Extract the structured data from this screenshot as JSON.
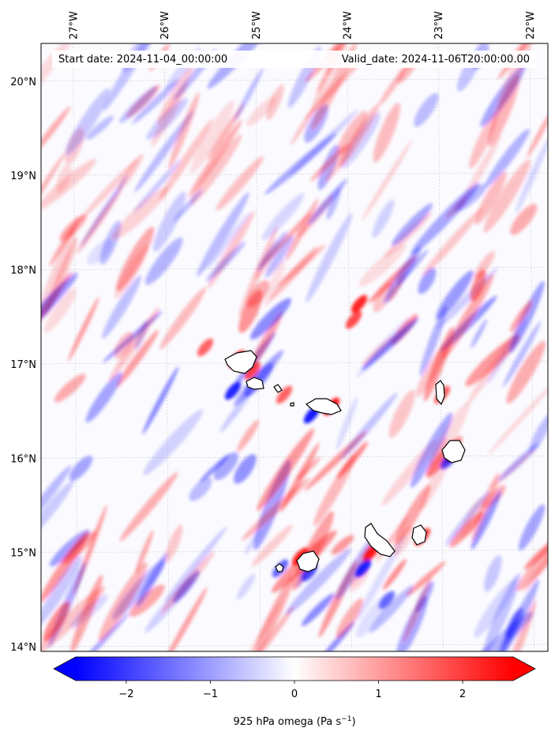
{
  "header": {
    "start_date": "Start date: 2024-11-04_00:00:00",
    "valid_date": "Valid_date: 2024-11-06T20:00:00.00"
  },
  "map": {
    "lon_min": -27.35,
    "lon_max": -21.8,
    "lat_min": 13.95,
    "lat_max": 20.4,
    "lon_ticks": [
      {
        "value": -27,
        "label": "27°W"
      },
      {
        "value": -26,
        "label": "26°W"
      },
      {
        "value": -25,
        "label": "25°W"
      },
      {
        "value": -24,
        "label": "24°W"
      },
      {
        "value": -23,
        "label": "23°W"
      },
      {
        "value": -22,
        "label": "22°W"
      }
    ],
    "lat_ticks": [
      {
        "value": 20,
        "label": "20°N"
      },
      {
        "value": 19,
        "label": "19°N"
      },
      {
        "value": 18,
        "label": "18°N"
      },
      {
        "value": 17,
        "label": "17°N"
      },
      {
        "value": 16,
        "label": "16°N"
      },
      {
        "value": 15,
        "label": "15°N"
      },
      {
        "value": 14,
        "label": "14°N"
      }
    ],
    "gridlines": true
  },
  "colorbar": {
    "min": -2.6,
    "max": 2.6,
    "colormap": "bwr",
    "extend": "both",
    "ticks": [
      {
        "value": -2,
        "label": "−2"
      },
      {
        "value": -1,
        "label": "−1"
      },
      {
        "value": 0,
        "label": "0"
      },
      {
        "value": 1,
        "label": "1"
      },
      {
        "value": 2,
        "label": "2"
      }
    ],
    "label": "925 hPa omega (Pa s",
    "label_exponent": "−1",
    "label_close": ")"
  },
  "colors": {
    "negative": "#0000ff",
    "zero": "#ffffff",
    "positive": "#ff0000",
    "coast": "#000000"
  }
}
